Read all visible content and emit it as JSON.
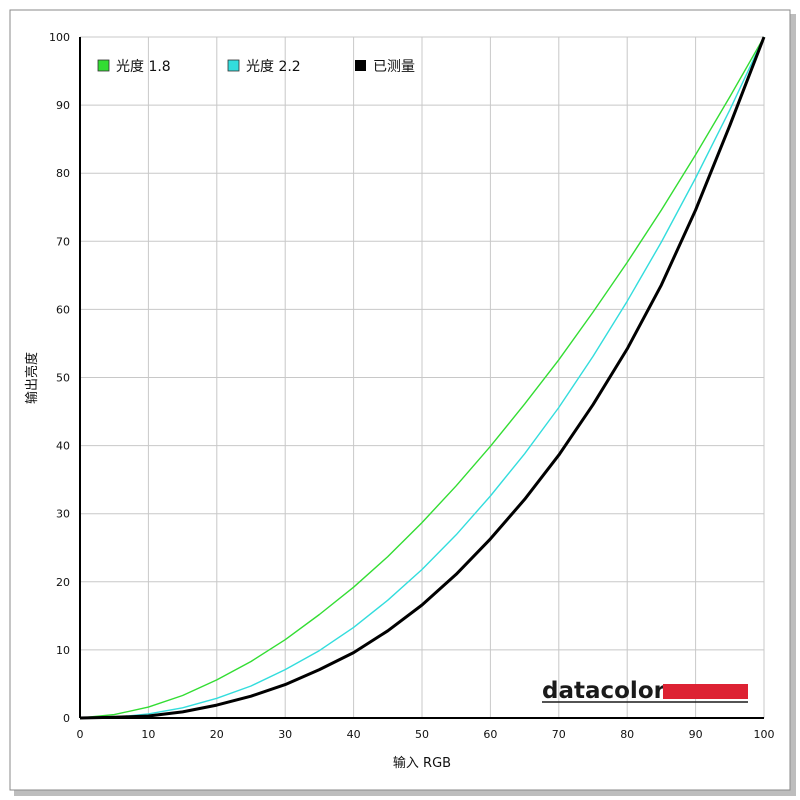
{
  "chart_data": {
    "type": "line",
    "xlabel": "输入 RGB",
    "ylabel": "输出亮度",
    "xlim": [
      0,
      100
    ],
    "ylim": [
      0,
      100
    ],
    "x_ticks": [
      "0",
      "10",
      "20",
      "30",
      "40",
      "50",
      "60",
      "70",
      "80",
      "90",
      "100"
    ],
    "y_ticks": [
      "0",
      "10",
      "20",
      "30",
      "40",
      "50",
      "60",
      "70",
      "80",
      "90",
      "100"
    ],
    "grid": true,
    "legend_position": "top-left",
    "series": [
      {
        "name": "光度 1.8",
        "color": "#33dd33",
        "x": [
          0,
          5,
          10,
          15,
          20,
          25,
          30,
          35,
          40,
          45,
          50,
          55,
          60,
          65,
          70,
          75,
          80,
          85,
          90,
          95,
          100
        ],
        "y": [
          0,
          0.5,
          1.6,
          3.3,
          5.6,
          8.3,
          11.5,
          15.2,
          19.2,
          23.7,
          28.7,
          34.1,
          39.9,
          46.1,
          52.6,
          59.6,
          66.9,
          74.6,
          82.7,
          91.2,
          100
        ]
      },
      {
        "name": "光度 2.2",
        "color": "#33dddd",
        "x": [
          0,
          5,
          10,
          15,
          20,
          25,
          30,
          35,
          40,
          45,
          50,
          55,
          60,
          65,
          70,
          75,
          80,
          85,
          90,
          95,
          100
        ],
        "y": [
          0,
          0.1,
          0.6,
          1.5,
          2.9,
          4.7,
          7.1,
          9.9,
          13.3,
          17.3,
          21.8,
          26.9,
          32.6,
          38.8,
          45.6,
          53.1,
          61.2,
          69.9,
          79.3,
          89.3,
          100
        ]
      },
      {
        "name": "已测量",
        "color": "#000000",
        "x": [
          0,
          5,
          10,
          15,
          20,
          25,
          30,
          35,
          40,
          45,
          50,
          55,
          60,
          65,
          70,
          75,
          80,
          85,
          90,
          95,
          100
        ],
        "y": [
          0,
          0.1,
          0.3,
          0.9,
          1.9,
          3.2,
          4.9,
          7.1,
          9.6,
          12.8,
          16.6,
          21.1,
          26.3,
          32.1,
          38.6,
          46.0,
          54.2,
          63.6,
          74.6,
          87.0,
          100
        ]
      }
    ]
  },
  "brand": {
    "text": "datacolor",
    "bar_color": "#dd2233"
  }
}
